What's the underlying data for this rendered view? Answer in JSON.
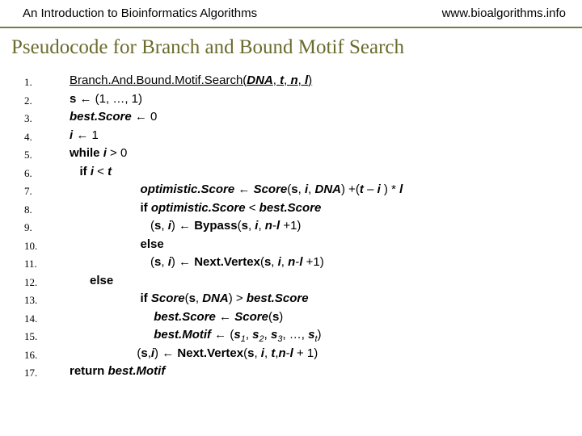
{
  "header": {
    "left": "An Introduction to Bioinformatics Algorithms",
    "right": "www.bioalgorithms.info"
  },
  "title": "Pseudocode for Branch and Bound Motif Search",
  "colors": {
    "rule": "#7a7a46",
    "title": "#6b6b2e",
    "text": "#000000",
    "background": "#ffffff"
  },
  "typography": {
    "header_fontsize": 15,
    "title_fontsize": 25,
    "title_family": "Georgia, serif",
    "code_fontsize": 15,
    "line_height": 22.5
  },
  "lines": {
    "count": 17,
    "l1_a": "Branch.And.Bound.Motif.Search(",
    "l1_b": "DNA",
    "l1_c": ", ",
    "l1_d": "t",
    "l1_e": ", ",
    "l1_f": "n",
    "l1_g": ", ",
    "l1_h": "l",
    "l1_i": ")",
    "l2_a": "s",
    "l2_b": " ← (1, …, 1)",
    "l3_a": "best.Score",
    "l3_b": " ← 0",
    "l4_a": "i",
    "l4_b": " ← 1",
    "l5_a": "while ",
    "l5_b": "i",
    "l5_c": " > 0",
    "l6_a": "   if ",
    "l6_b": "i",
    "l6_c": " < ",
    "l6_d": "t",
    "l7_a": "                     ",
    "l7_b": "optimistic.Score",
    "l7_c": " ← ",
    "l7_d": "Score",
    "l7_e": "(",
    "l7_f": "s",
    "l7_g": ", ",
    "l7_h": "i",
    "l7_i": ", ",
    "l7_j": "DNA",
    "l7_k": ") +(",
    "l7_l": "t",
    "l7_m": " – ",
    "l7_n": "i",
    "l7_o": " ) * ",
    "l7_p": "l",
    "l8_a": "                     if ",
    "l8_b": "optimistic.Score",
    "l8_c": " < ",
    "l8_d": "best.Score",
    "l9_a": "                        (",
    "l9_b": "s",
    "l9_c": ", ",
    "l9_d": "i",
    "l9_e": ") ← ",
    "l9_f": "Bypass",
    "l9_g": "(",
    "l9_h": "s",
    "l9_i": ", ",
    "l9_j": "i",
    "l9_k": ", ",
    "l9_l": "n",
    "l9_m": "-",
    "l9_n": "l ",
    "l9_o": "+1)",
    "l10_a": "                     else",
    "l11_a": "                        (",
    "l11_b": "s",
    "l11_c": ", ",
    "l11_d": "i",
    "l11_e": ") ← ",
    "l11_f": "Next.Vertex",
    "l11_g": "(",
    "l11_h": "s",
    "l11_i": ", ",
    "l11_j": "i",
    "l11_k": ", ",
    "l11_l": "n",
    "l11_m": "-",
    "l11_n": "l ",
    "l11_o": "+1)",
    "l12_a": "      else",
    "l13_a": "                     if ",
    "l13_b": "Score",
    "l13_c": "(",
    "l13_d": "s",
    "l13_e": ", ",
    "l13_f": "DNA",
    "l13_g": ") > ",
    "l13_h": "best.Score",
    "l14_a": "                         ",
    "l14_b": "best.Score",
    "l14_c": " ← ",
    "l14_d": "Score",
    "l14_e": "(",
    "l14_f": "s",
    "l14_g": ")",
    "l15_a": "                         ",
    "l15_b": "best.Motif",
    "l15_c": " ← (",
    "l15_d": "s",
    "l15_e1": "1",
    "l15_f": ", ",
    "l15_g": "s",
    "l15_e2": "2",
    "l15_h": ", ",
    "l15_i": "s",
    "l15_e3": "3",
    "l15_j": ", …, ",
    "l15_k": "s",
    "l15_et": "t",
    "l15_l": ")",
    "l16_a": "                    (",
    "l16_b": "s",
    "l16_c": ",",
    "l16_d": "i",
    "l16_e": ") ← ",
    "l16_f": "Next.Vertex",
    "l16_g": "(",
    "l16_h": "s",
    "l16_i": ", ",
    "l16_j": "i",
    "l16_k": ", ",
    "l16_l": "t",
    "l16_m": ",",
    "l16_n": "n",
    "l16_o": "-",
    "l16_p": "l ",
    "l16_q": "+ 1)",
    "l17_a": "return ",
    "l17_b": "best.Motif"
  }
}
